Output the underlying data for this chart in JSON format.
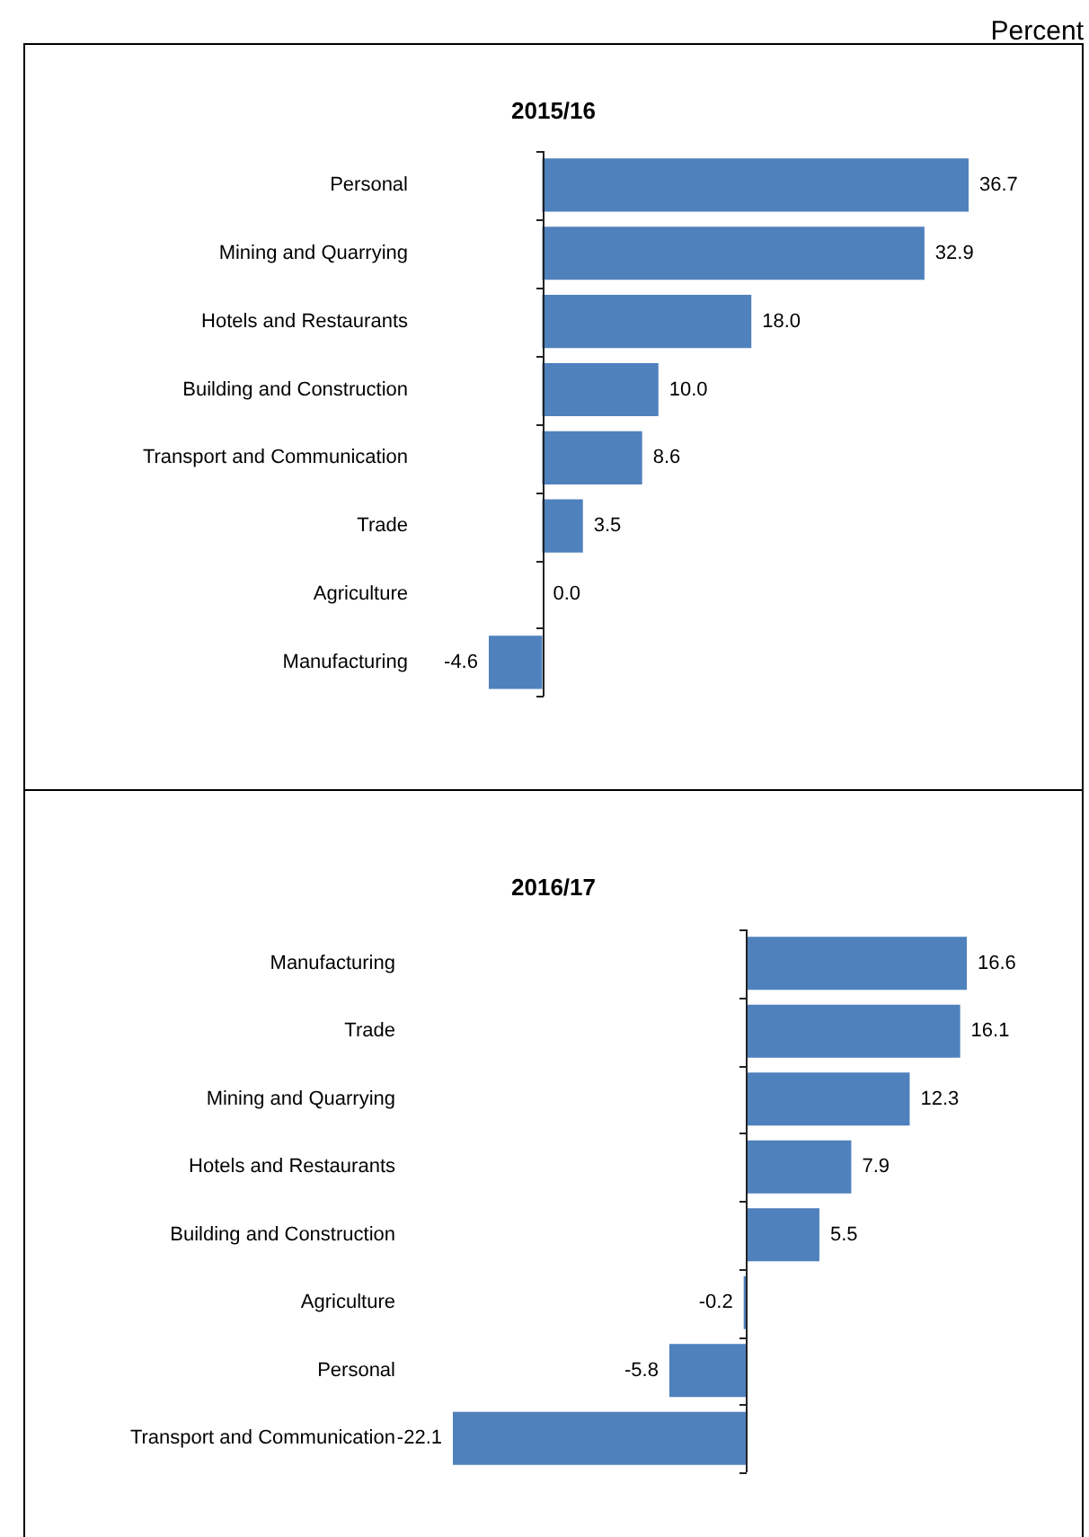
{
  "chart_data": [
    {
      "type": "bar",
      "orientation": "horizontal",
      "title": "2015/16",
      "categories": [
        "Personal",
        "Mining and Quarrying",
        "Hotels and Restaurants",
        "Building and Construction",
        "Transport and Communication",
        "Trade",
        "Agriculture",
        "Manufacturing"
      ],
      "values": [
        36.7,
        32.9,
        18.0,
        10.0,
        8.6,
        3.5,
        0.0,
        -4.6
      ],
      "value_labels": [
        "36.7",
        "32.9",
        "18.0",
        "10.0",
        "8.6",
        "3.5",
        "0.0",
        "-4.6"
      ],
      "color": "#4f81bd",
      "annotations": [
        "Percent"
      ]
    },
    {
      "type": "bar",
      "orientation": "horizontal",
      "title": "2016/17",
      "categories": [
        "Manufacturing",
        "Trade",
        "Mining and Quarrying",
        "Hotels and Restaurants",
        "Building and Construction",
        "Agriculture",
        "Personal",
        "Transport and Communication"
      ],
      "values": [
        16.6,
        16.1,
        12.3,
        7.9,
        5.5,
        -0.2,
        -5.8,
        -22.1
      ],
      "value_labels": [
        "16.6",
        "16.1",
        "12.3",
        "7.9",
        "5.5",
        "-0.2",
        "-5.8",
        "-22.1"
      ],
      "color": "#4f81bd"
    }
  ]
}
